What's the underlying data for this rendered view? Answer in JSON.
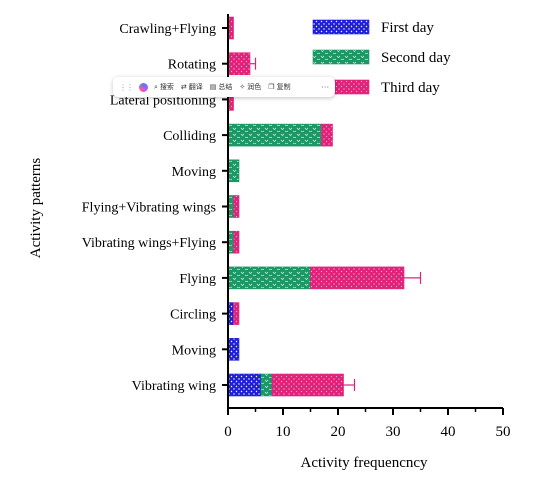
{
  "chart_data": {
    "type": "bar",
    "orientation": "horizontal",
    "stacked": true,
    "categories": [
      "Crawling+Flying",
      "Rotating",
      "Lateral positioning",
      "Colliding",
      "Moving",
      "Flying+Vibrating wings",
      "Vibrating wings+Flying",
      "Flying",
      "Circling",
      "Moving",
      "Vibrating wing"
    ],
    "series": [
      {
        "name": "First day",
        "color": "#1f1fd6",
        "pattern": "dots",
        "values": [
          0,
          0,
          0,
          0,
          0,
          0,
          0,
          0,
          1,
          2,
          6
        ]
      },
      {
        "name": "Second day",
        "color": "#1a9966",
        "pattern": "chevrons",
        "values": [
          0,
          0,
          0,
          17,
          2,
          1,
          1,
          15,
          0,
          0,
          2
        ]
      },
      {
        "name": "Third day",
        "color": "#e0227a",
        "pattern": "dots",
        "values": [
          1,
          4,
          1,
          2,
          0,
          1,
          1,
          17,
          1,
          0,
          13
        ]
      }
    ],
    "error_bars": [
      0,
      1,
      0,
      0,
      0,
      0,
      0,
      3,
      0,
      0,
      2
    ],
    "xlabel": "Activity frequencncy",
    "ylabel": "Activity patterns",
    "xlim": [
      0,
      50
    ],
    "xticks": [
      "0",
      "10",
      "20",
      "30",
      "40",
      "50"
    ],
    "grid": false,
    "legend_position": "top-right"
  },
  "toolbar": {
    "items": [
      {
        "icon": "search-icon",
        "glyph": "⌕",
        "label": "搜索"
      },
      {
        "icon": "translate-icon",
        "glyph": "⇄",
        "label": "翻译"
      },
      {
        "icon": "summary-icon",
        "glyph": "▤",
        "label": "总结"
      },
      {
        "icon": "polish-icon",
        "glyph": "✧",
        "label": "润色"
      },
      {
        "icon": "copy-icon",
        "glyph": "❐",
        "label": "复制"
      }
    ],
    "more_label": "···"
  }
}
